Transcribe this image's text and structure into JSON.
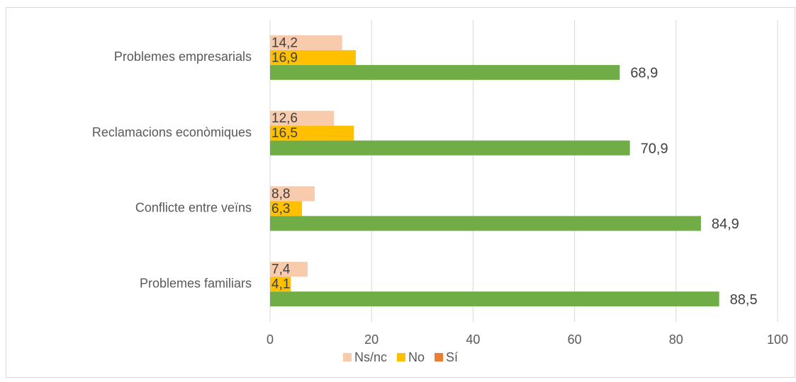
{
  "chart_data": {
    "type": "hbar",
    "categories": [
      "Problemes familiars",
      "Conflicte entre veïns",
      "Reclamacions econòmiques",
      "Problemes empresarials"
    ],
    "series": [
      {
        "name": "Sí",
        "color": "#70ad47",
        "legend_color": "#ed7d31",
        "values": [
          88.5,
          84.9,
          70.9,
          68.9
        ],
        "value_labels": [
          "88,5",
          "84,9",
          "70,9",
          "68,9"
        ]
      },
      {
        "name": "No",
        "color": "#ffc000",
        "values": [
          4.1,
          6.3,
          16.5,
          16.9
        ],
        "value_labels": [
          "4,1",
          "6,3",
          "16,5",
          "16,9"
        ]
      },
      {
        "name": "Ns/nc",
        "color": "#f8cbad",
        "values": [
          7.4,
          8.8,
          12.6,
          14.2
        ],
        "value_labels": [
          "7,4",
          "8,8",
          "12,6",
          "14,2"
        ]
      }
    ],
    "xlim": [
      0,
      100
    ],
    "xticks": [
      0,
      20,
      40,
      60,
      80,
      100
    ],
    "grid": true,
    "legend": "bottom"
  }
}
